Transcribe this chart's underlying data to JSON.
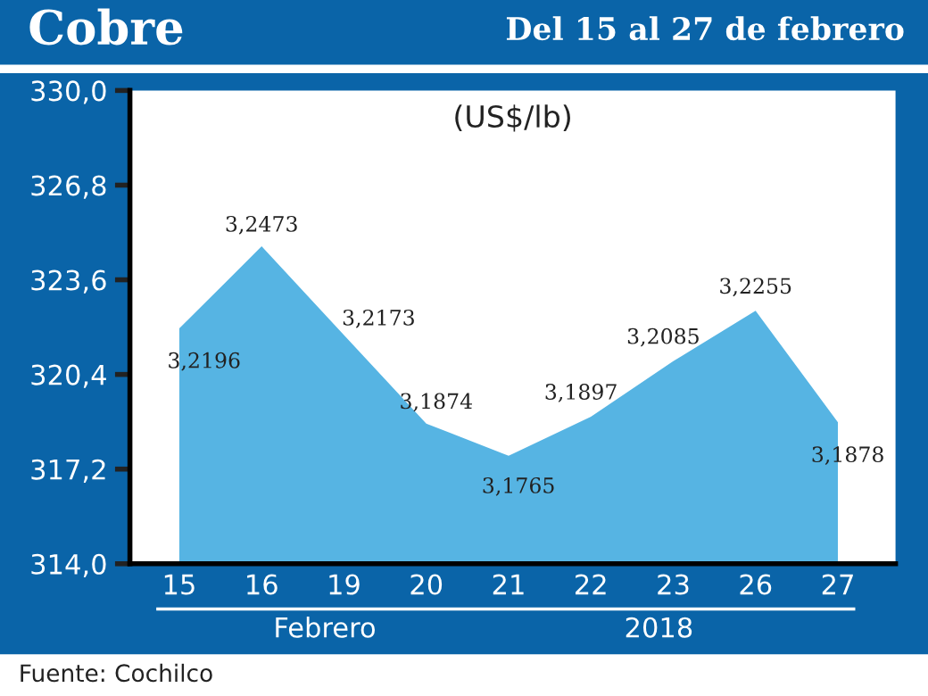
{
  "chart_data": {
    "type": "area",
    "title": "Cobre",
    "subtitle": "Del 15 al 27 de febrero",
    "ylabel": "(US$/lb)",
    "categories": [
      "15",
      "16",
      "19",
      "20",
      "21",
      "22",
      "23",
      "26",
      "27"
    ],
    "values": [
      321.96,
      324.73,
      321.73,
      318.74,
      317.65,
      318.97,
      320.85,
      322.55,
      318.78
    ],
    "value_labels": [
      "3,2196",
      "3,2473",
      "3,2173",
      "3,1874",
      "3,1765",
      "3,1897",
      "3,2085",
      "3,2255",
      "3,1878"
    ],
    "color": "#56b4e3",
    "ylim": [
      314.0,
      330.0
    ],
    "yticks": [
      {
        "value": 314.0,
        "label": "314,0"
      },
      {
        "value": 317.2,
        "label": "317,2"
      },
      {
        "value": 320.4,
        "label": "320,4"
      },
      {
        "value": 323.6,
        "label": "323,6"
      },
      {
        "value": 326.8,
        "label": "326,8"
      },
      {
        "value": 330.0,
        "label": "330,0"
      }
    ],
    "grid": false,
    "annotations": [
      "Febrero",
      "2018",
      "Fuente: Cochilco"
    ]
  }
}
